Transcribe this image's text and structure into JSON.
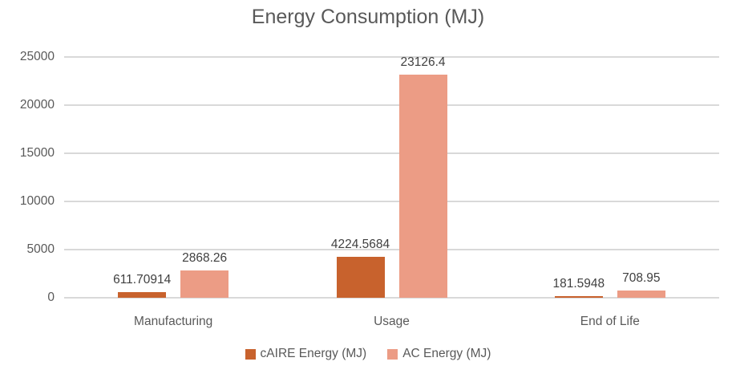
{
  "chart_data": {
    "type": "bar",
    "title": "Energy Consumption (MJ)",
    "categories": [
      "Manufacturing",
      "Usage",
      "End of Life"
    ],
    "series": [
      {
        "name": "cAIRE Energy (MJ)",
        "key": "caire",
        "color": "#C8622D",
        "values": [
          611.70914,
          4224.5684,
          181.5948
        ],
        "labels": [
          "611.70914",
          "4224.5684",
          "181.5948"
        ]
      },
      {
        "name": "AC Energy (MJ)",
        "key": "ac",
        "color": "#EC9C85",
        "values": [
          2868.26,
          23126.4,
          708.95
        ],
        "labels": [
          "2868.26",
          "23126.4",
          "708.95"
        ]
      }
    ],
    "ylim": [
      0,
      25000
    ],
    "yticks": [
      0,
      5000,
      10000,
      15000,
      20000,
      25000
    ],
    "grid": true,
    "legend_position": "bottom",
    "colors": {
      "grid": "#D9D9D9",
      "axis_text": "#595959",
      "title_text": "#595959",
      "value_label_text": "#404040",
      "background": "#FFFFFF"
    }
  }
}
